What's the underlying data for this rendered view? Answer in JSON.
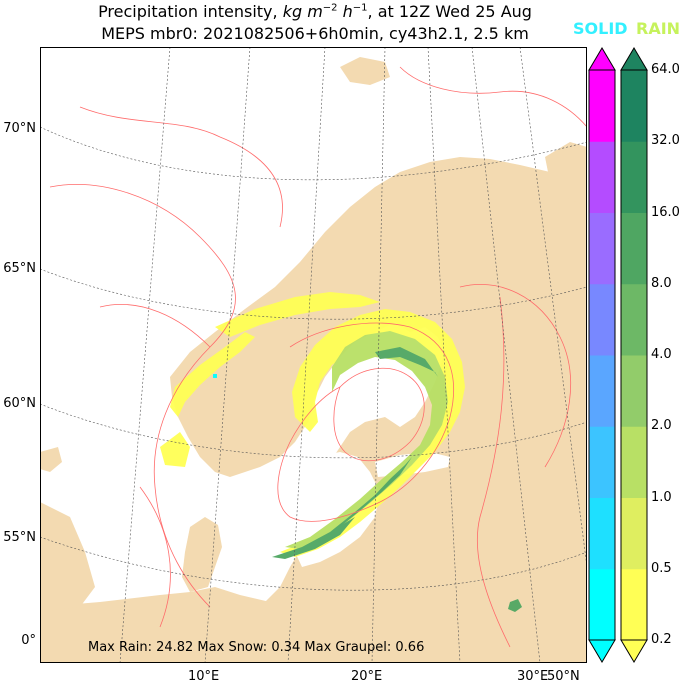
{
  "title": {
    "line1_prefix": "Precipitation intensity, ",
    "line1_units": "kg m",
    "line1_exp1": "−2",
    "line1_h": " h",
    "line1_exp2": "−1",
    "line1_suffix": ", at 12Z Wed 25 Aug",
    "line2": "MEPS mbr0: 2021082506+6h0min, cy43h2.1, 2.5 km"
  },
  "legend": {
    "solid_label": "SOLID",
    "rain_label": "RAIN",
    "solid_color": "#33f0ff",
    "rain_color": "#c6f25c"
  },
  "colorbar": {
    "tick_labels": [
      "0.2",
      "0.5",
      "1.0",
      "2.0",
      "4.0",
      "8.0",
      "16.0",
      "32.0",
      "64.0"
    ],
    "solid_colors": [
      "#00ffff",
      "#1ee0ff",
      "#3cc4ff",
      "#5aa6ff",
      "#7888ff",
      "#9a6cff",
      "#b44cff",
      "#d030ff",
      "#e818ff",
      "#ff00ff"
    ],
    "rain_colors": [
      "#ffff55",
      "#dfee60",
      "#b8e065",
      "#92cc6a",
      "#6db866",
      "#4fa662",
      "#33945e",
      "#1e8460",
      "#007a60"
    ]
  },
  "axes": {
    "lat_labels": [
      "70°N",
      "65°N",
      "60°N",
      "55°N",
      "0°"
    ],
    "lon_labels": [
      "10°E",
      "20°E",
      "30°E",
      "50°N"
    ]
  },
  "stats": {
    "text": "Max Rain: 24.82 Max Snow: 0.34 Max Graupel: 0.66"
  },
  "map_colors": {
    "land": "#f3dab1",
    "sea": "#ffffff",
    "contour": "#ff6b6b",
    "grid": "#555555",
    "precip_light": "#ffff55",
    "precip_mid": "#b8e065",
    "precip_heavy": "#4fa662"
  }
}
